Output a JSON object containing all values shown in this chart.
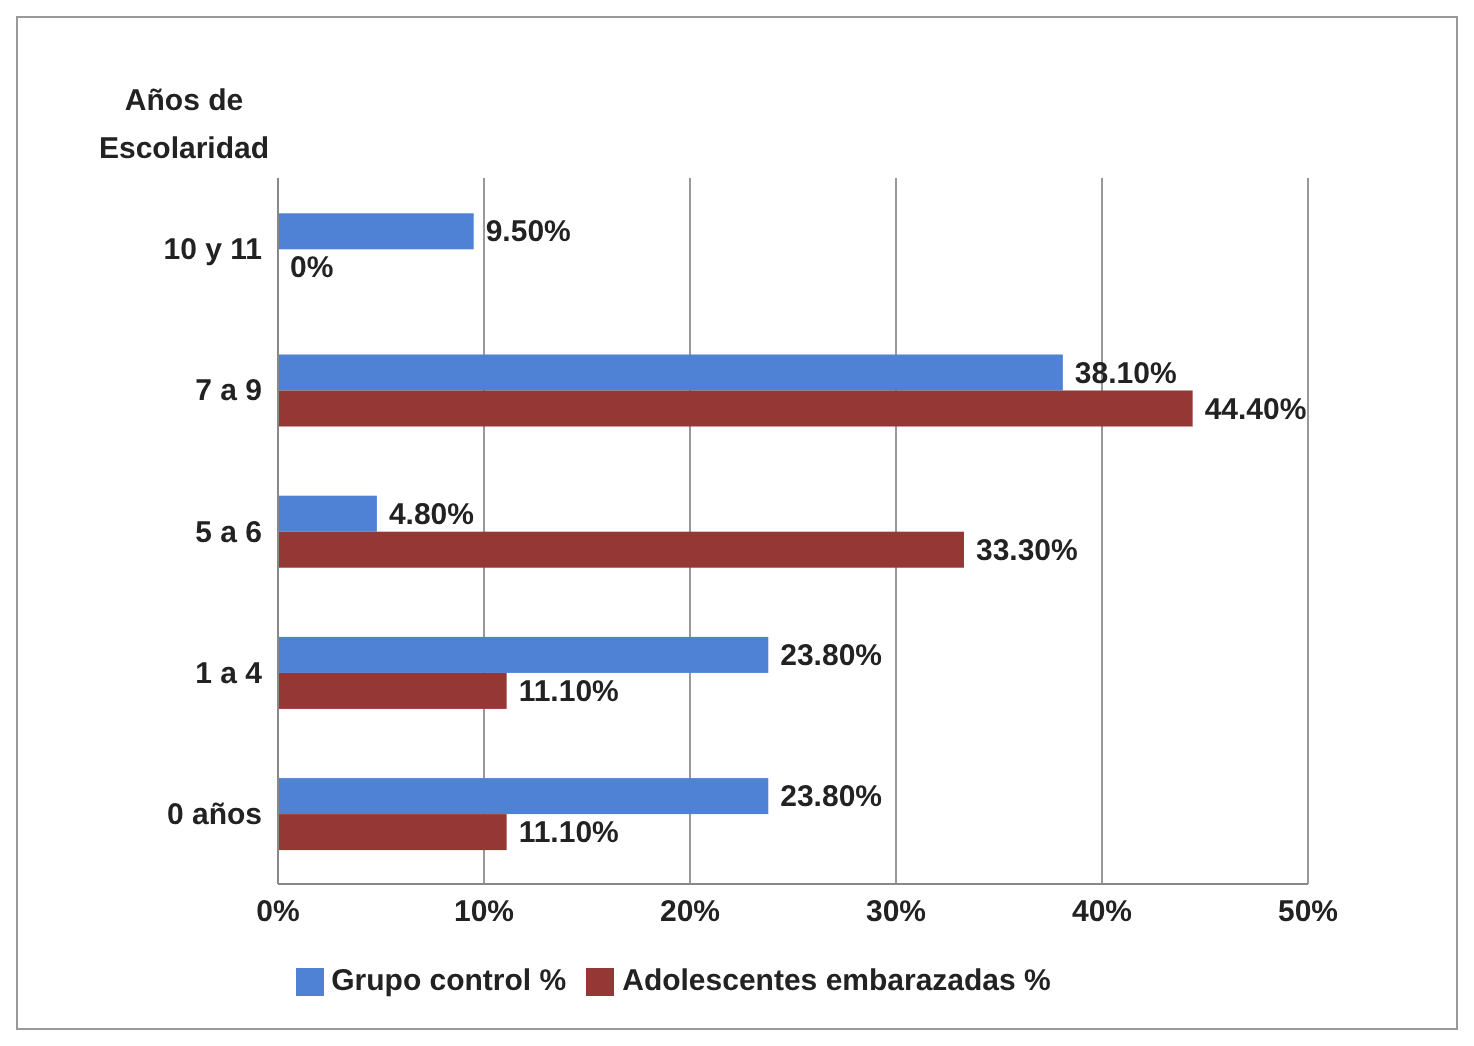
{
  "chart_data": {
    "type": "bar",
    "orientation": "horizontal",
    "ylabel": "Años de Escolaridad",
    "categories": [
      "10 y 11",
      "7 a 9",
      "5 a 6",
      "1 a 4",
      "0 años"
    ],
    "series": [
      {
        "name": "Grupo control %",
        "color": "#4f81d5",
        "values": [
          9.5,
          38.1,
          4.8,
          23.8,
          23.8
        ],
        "value_labels": [
          "9.50%",
          "38.10%",
          "4.80%",
          "23.80%",
          "23.80%"
        ]
      },
      {
        "name": "Adolescentes embarazadas %",
        "color": "#953735",
        "values": [
          0,
          44.4,
          33.3,
          11.1,
          11.1
        ],
        "value_labels": [
          "0%",
          "44.40%",
          "33.30%",
          "11.10%",
          "11.10%"
        ]
      }
    ],
    "xlim": [
      0,
      50
    ],
    "xticks": [
      {
        "value": 0,
        "label": "0%"
      },
      {
        "value": 10,
        "label": "10%"
      },
      {
        "value": 20,
        "label": "20%"
      },
      {
        "value": 30,
        "label": "30%"
      },
      {
        "value": 40,
        "label": "40%"
      },
      {
        "value": 50,
        "label": "50%"
      }
    ],
    "grid": "x",
    "legend": "bottom"
  }
}
